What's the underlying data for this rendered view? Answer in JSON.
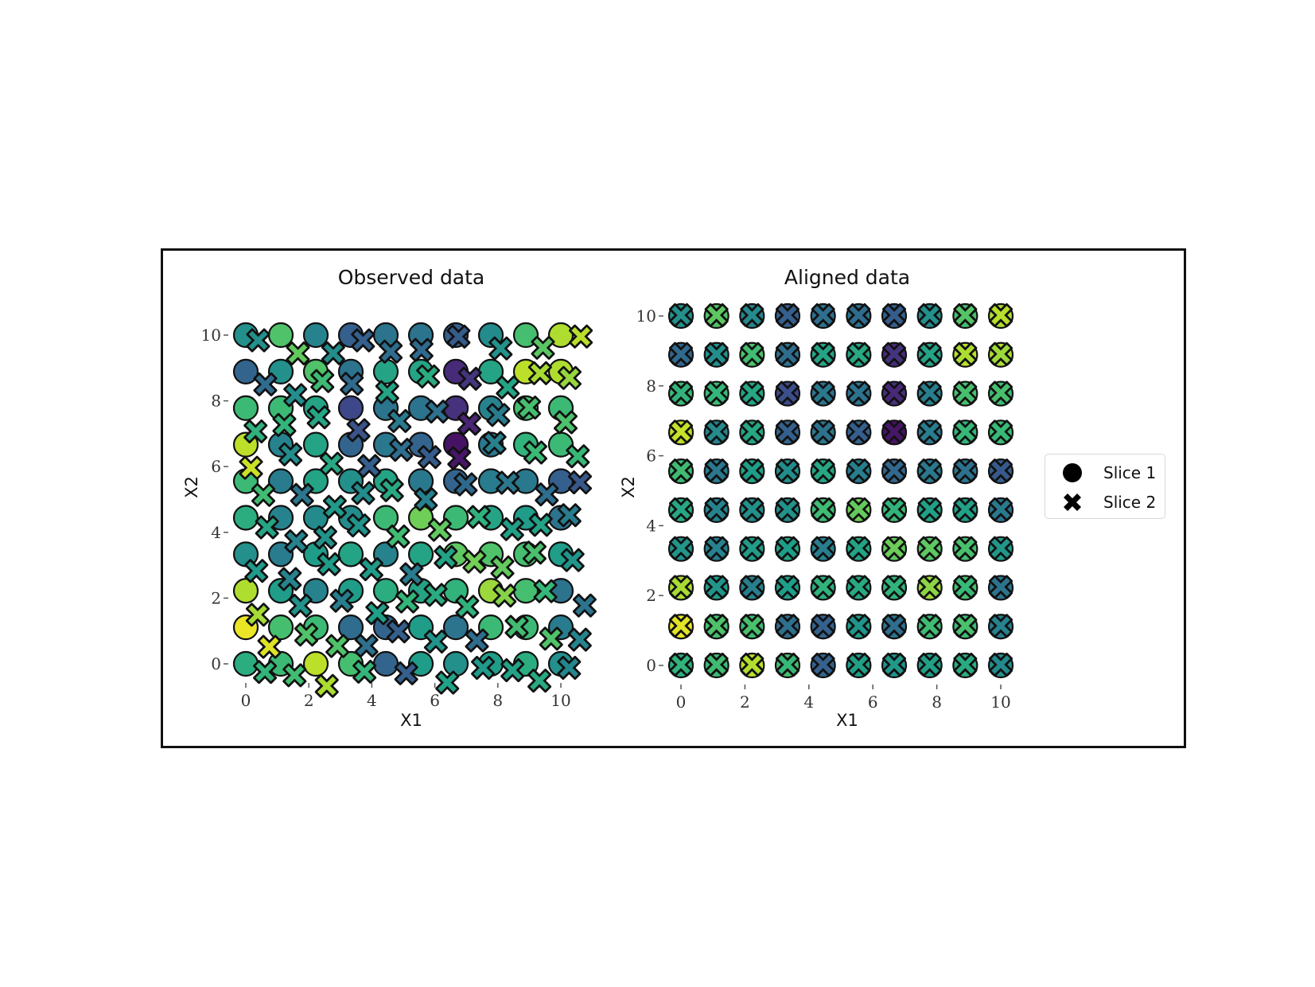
{
  "chart_data": [
    {
      "type": "scatter",
      "title": "Observed data",
      "xlabel": "X1",
      "ylabel": "X2",
      "xticks": [
        0,
        2,
        4,
        6,
        8,
        10
      ],
      "yticks": [
        0,
        2,
        4,
        6,
        8,
        10
      ],
      "xlim": [
        -0.5,
        10.9
      ],
      "ylim": [
        -0.6,
        11.0
      ],
      "grid": false,
      "colormap": "viridis",
      "series": [
        {
          "name": "Slice 1",
          "marker": "circle",
          "grid_points": "10x10 regular grid, X1 and X2 in {0, 1.11, 2.22, 3.33, 4.44, 5.56, 6.67, 7.78, 8.89, 10}",
          "color_values_rows_top_to_bottom": [
            [
              0.5,
              0.72,
              0.45,
              0.3,
              0.38,
              0.38,
              0.3,
              0.48,
              0.7,
              0.88
            ],
            [
              0.32,
              0.5,
              0.72,
              0.38,
              0.58,
              0.58,
              0.12,
              0.58,
              0.9,
              0.88
            ],
            [
              0.68,
              0.68,
              0.58,
              0.22,
              0.38,
              0.38,
              0.14,
              0.45,
              0.7,
              0.68
            ],
            [
              0.9,
              0.45,
              0.58,
              0.32,
              0.4,
              0.32,
              0.05,
              0.4,
              0.65,
              0.68
            ],
            [
              0.68,
              0.42,
              0.58,
              0.5,
              0.58,
              0.4,
              0.32,
              0.42,
              0.4,
              0.3
            ],
            [
              0.62,
              0.45,
              0.48,
              0.48,
              0.68,
              0.78,
              0.68,
              0.58,
              0.55,
              0.38
            ],
            [
              0.5,
              0.42,
              0.55,
              0.58,
              0.45,
              0.58,
              0.75,
              0.72,
              0.7,
              0.55
            ],
            [
              0.88,
              0.55,
              0.45,
              0.55,
              0.62,
              0.58,
              0.65,
              0.85,
              0.7,
              0.38
            ],
            [
              0.97,
              0.7,
              0.68,
              0.35,
              0.32,
              0.55,
              0.38,
              0.68,
              0.68,
              0.42
            ],
            [
              0.62,
              0.68,
              0.9,
              0.7,
              0.32,
              0.55,
              0.5,
              0.55,
              0.62,
              0.5
            ]
          ]
        },
        {
          "name": "Slice 2",
          "marker": "X",
          "note": "Same 100 points shown at distorted (warped) observed locations; spatial range approx X1 -0.1..10.6, X2 -0.1..10.9"
        }
      ]
    },
    {
      "type": "scatter",
      "title": "Aligned data",
      "xlabel": "X1",
      "ylabel": "X2",
      "xticks": [
        0,
        2,
        4,
        6,
        8,
        10
      ],
      "yticks": [
        0,
        2,
        4,
        6,
        8,
        10
      ],
      "xlim": [
        -0.5,
        10.5
      ],
      "ylim": [
        -0.5,
        10.5
      ],
      "grid": false,
      "colormap": "viridis",
      "series": [
        {
          "name": "Slice 1",
          "marker": "circle",
          "grid_points": "10x10 regular grid, X1 and X2 in {0, 1.11, 2.22, 3.33, 4.44, 5.56, 6.67, 7.78, 8.89, 10}"
        },
        {
          "name": "Slice 2",
          "marker": "X",
          "note": "After alignment, Slice 2 points overlap Slice 1 grid points with matching colors"
        }
      ]
    }
  ],
  "legend": {
    "items": [
      {
        "label": "Slice 1",
        "marker": "circle"
      },
      {
        "label": "Slice 2",
        "marker": "X"
      }
    ],
    "position": "center right"
  },
  "plots": {
    "observed": {
      "title": "Observed data",
      "xlabel": "X1",
      "ylabel": "X2"
    },
    "aligned": {
      "title": "Aligned data",
      "xlabel": "X1",
      "ylabel": "X2"
    }
  },
  "ticks": {
    "x": [
      "0",
      "2",
      "4",
      "6",
      "8",
      "10"
    ],
    "y": [
      "0",
      "2",
      "4",
      "6",
      "8",
      "10"
    ]
  },
  "colors": {
    "edge": "#111111",
    "frame": "#111111",
    "viridis": [
      "#440154",
      "#482878",
      "#3e4989",
      "#31688e",
      "#26828e",
      "#1f9e89",
      "#35b779",
      "#6ece58",
      "#b5de2b",
      "#fde725"
    ]
  }
}
